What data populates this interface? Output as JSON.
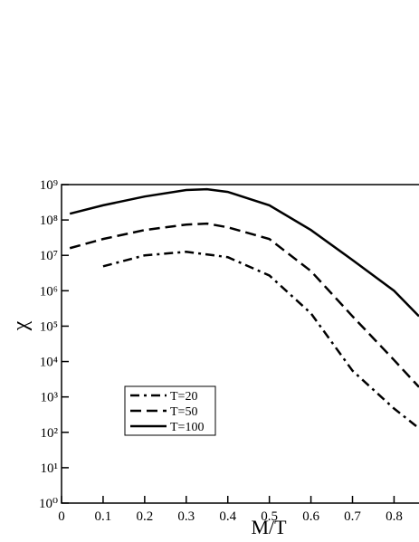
{
  "chart_data": {
    "type": "line",
    "x_label": "M/T",
    "y_label": "χ",
    "xlim": [
      0,
      0.86
    ],
    "xticks": [
      0,
      0.1,
      0.2,
      0.3,
      0.4,
      0.5,
      0.6,
      0.7,
      0.8
    ],
    "ylim": [
      1,
      1000000000
    ],
    "log_y": true,
    "yticks": [
      {
        "value": 1,
        "label": "10⁰"
      },
      {
        "value": 10,
        "label": "10¹"
      },
      {
        "value": 100,
        "label": "10²"
      },
      {
        "value": 1000,
        "label": "10³"
      },
      {
        "value": 10000,
        "label": "10⁴"
      },
      {
        "value": 100000,
        "label": "10⁵"
      },
      {
        "value": 1000000,
        "label": "10⁶"
      },
      {
        "value": 10000000,
        "label": "10⁷"
      },
      {
        "value": 100000000,
        "label": "10⁸"
      },
      {
        "value": 1000000000,
        "label": "10⁹"
      }
    ],
    "legend": "lower left",
    "series": [
      {
        "name": "T=20",
        "color": "#000000",
        "style": "dashdot",
        "x": [
          0.1,
          0.2,
          0.3,
          0.4,
          0.5,
          0.6,
          0.7,
          0.8,
          0.86
        ],
        "values": [
          4900000,
          10000000,
          12600000,
          8900000,
          2700000,
          230000,
          5500,
          470,
          130
        ]
      },
      {
        "name": "T=50",
        "color": "#000000",
        "style": "dash",
        "x": [
          0.02,
          0.1,
          0.2,
          0.3,
          0.35,
          0.4,
          0.5,
          0.6,
          0.7,
          0.8,
          0.86
        ],
        "values": [
          16000000,
          29000000,
          52000000,
          74000000,
          79000000,
          62000000,
          29000000,
          3600000,
          190000,
          11000,
          1900
        ]
      },
      {
        "name": "T=100",
        "color": "#000000",
        "style": "solid",
        "x": [
          0.02,
          0.1,
          0.2,
          0.3,
          0.35,
          0.4,
          0.5,
          0.6,
          0.7,
          0.8,
          0.86
        ],
        "values": [
          150000000,
          260000000,
          460000000,
          700000000,
          740000000,
          620000000,
          260000000,
          52000000,
          7400000,
          1000000,
          190000
        ]
      }
    ]
  }
}
